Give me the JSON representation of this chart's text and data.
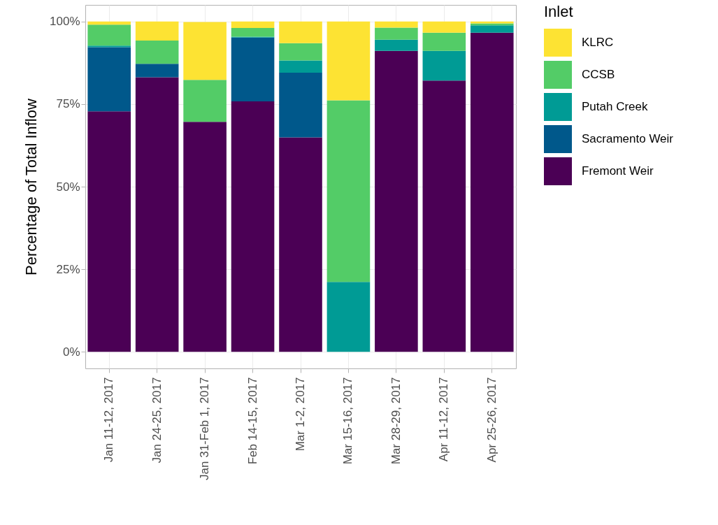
{
  "chart_data": {
    "type": "bar",
    "stacked": true,
    "ylabel": "Percentage of Total Inflow",
    "legend_title": "Inlet",
    "legend": "right",
    "grid": true,
    "categories": [
      "Jan 11-12, 2017",
      "Jan 24-25, 2017",
      "Jan 31-Feb 1, 2017",
      "Feb 14-15, 2017",
      "Mar 1-2, 2017",
      "Mar 15-16, 2017",
      "Mar 28-29, 2017",
      "Apr 11-12, 2017",
      "Apr 25-26, 2017"
    ],
    "ylim": [
      -5,
      105
    ],
    "yticks": [
      {
        "value": 0,
        "label": "0%"
      },
      {
        "value": 25,
        "label": "25%"
      },
      {
        "value": 50,
        "label": "50%"
      },
      {
        "value": 75,
        "label": "75%"
      },
      {
        "value": 100,
        "label": "100%"
      }
    ],
    "series": [
      {
        "name": "Fremont Weir",
        "color": "#4b0055",
        "values": [
          72.8,
          83.1,
          69.6,
          75.8,
          64.9,
          0,
          91.1,
          82.1,
          96.6
        ]
      },
      {
        "name": "Sacramento Weir",
        "color": "#00588b",
        "values": [
          19.4,
          4.1,
          0,
          19.3,
          19.6,
          0,
          0,
          0,
          0
        ]
      },
      {
        "name": "Putah Creek",
        "color": "#009b95",
        "values": [
          0.5,
          0,
          0,
          0.3,
          3.7,
          21.2,
          3.4,
          9.0,
          2.2
        ]
      },
      {
        "name": "CCSB",
        "color": "#53cc67",
        "values": [
          6.3,
          7.0,
          12.7,
          2.6,
          5.2,
          54.9,
          3.6,
          5.5,
          0.6
        ]
      },
      {
        "name": "KLRC",
        "color": "#fde333",
        "values": [
          1.0,
          5.8,
          17.5,
          2.0,
          6.6,
          23.9,
          1.9,
          3.4,
          0.6
        ]
      }
    ]
  }
}
